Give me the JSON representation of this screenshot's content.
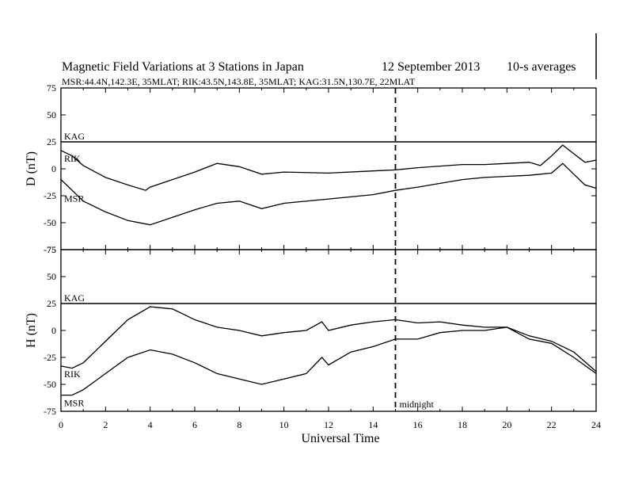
{
  "chart_data": {
    "type": "line",
    "title": "Magnetic Field Variations at 3 Stations in Japan",
    "date": "12 September 2013",
    "averaging": "10-s averages",
    "stations_line": "MSR:44.4N,142.3E, 35MLAT;  RIK:43.5N,143.8E, 35MLAT;  KAG:31.5N,130.7E, 22MLAT",
    "xlabel": "Universal Time",
    "xlim": [
      0,
      24
    ],
    "x_ticks": [
      "0",
      "2",
      "4",
      "6",
      "8",
      "10",
      "12",
      "14",
      "16",
      "18",
      "20",
      "22",
      "24"
    ],
    "midnight": {
      "x": 15,
      "label": "midnight"
    },
    "panels": [
      {
        "ylabel": "D (nT)",
        "ylim": [
          -75,
          75
        ],
        "y_ticks": [
          "75",
          "50",
          "25",
          "0",
          "-25",
          "-50",
          "-75"
        ],
        "series": [
          {
            "name": "KAG",
            "x": [
              0,
              24
            ],
            "y": [
              25,
              25
            ]
          },
          {
            "name": "RIK",
            "x": [
              0,
              0.5,
              1,
              2,
              3,
              3.8,
              4,
              5,
              6,
              7,
              8,
              9,
              10,
              12,
              14,
              15,
              16,
              18,
              19,
              20,
              21,
              21.5,
              22,
              22.5,
              23,
              23.5,
              24
            ],
            "y": [
              17,
              12,
              3,
              -8,
              -15,
              -20,
              -17,
              -10,
              -3,
              5,
              2,
              -5,
              -3,
              -4,
              -2,
              -1,
              1,
              4,
              4,
              5,
              6,
              3,
              12,
              22,
              14,
              6,
              8
            ]
          },
          {
            "name": "MSR",
            "x": [
              0,
              0.5,
              1,
              2,
              3,
              4,
              5,
              6,
              7,
              8,
              9,
              10,
              12,
              14,
              15,
              16,
              18,
              19,
              20,
              21,
              22,
              22.5,
              23,
              23.5,
              24
            ],
            "y": [
              -10,
              -20,
              -30,
              -40,
              -48,
              -52,
              -45,
              -38,
              -32,
              -30,
              -37,
              -32,
              -28,
              -24,
              -20,
              -17,
              -10,
              -8,
              -7,
              -6,
              -4,
              5,
              -5,
              -15,
              -18
            ]
          }
        ]
      },
      {
        "ylabel": "H (nT)",
        "ylim": [
          -75,
          75
        ],
        "y_ticks": [
          "75",
          "50",
          "25",
          "0",
          "-25",
          "-50",
          "-75"
        ],
        "series": [
          {
            "name": "KAG",
            "x": [
              0,
              24
            ],
            "y": [
              25,
              25
            ]
          },
          {
            "name": "RIK",
            "x": [
              0,
              0.5,
              1,
              2,
              3,
              4,
              5,
              6,
              7,
              8,
              9,
              10,
              11,
              11.7,
              12,
              13,
              14,
              15,
              16,
              17,
              18,
              19,
              20,
              21,
              22,
              23,
              24
            ],
            "y": [
              -33,
              -35,
              -30,
              -10,
              10,
              22,
              20,
              10,
              3,
              0,
              -5,
              -2,
              0,
              8,
              0,
              5,
              8,
              10,
              7,
              8,
              5,
              3,
              3,
              -5,
              -10,
              -20,
              -38
            ]
          },
          {
            "name": "MSR",
            "x": [
              0,
              0.5,
              1,
              2,
              3,
              4,
              5,
              6,
              7,
              8,
              9,
              10,
              11,
              11.7,
              12,
              13,
              14,
              15,
              16,
              17,
              18,
              19,
              20,
              21,
              22,
              23,
              24
            ],
            "y": [
              -60,
              -60,
              -55,
              -40,
              -25,
              -18,
              -22,
              -30,
              -40,
              -45,
              -50,
              -45,
              -40,
              -25,
              -32,
              -20,
              -15,
              -8,
              -8,
              -2,
              0,
              0,
              3,
              -8,
              -12,
              -25,
              -40
            ]
          }
        ]
      }
    ]
  }
}
